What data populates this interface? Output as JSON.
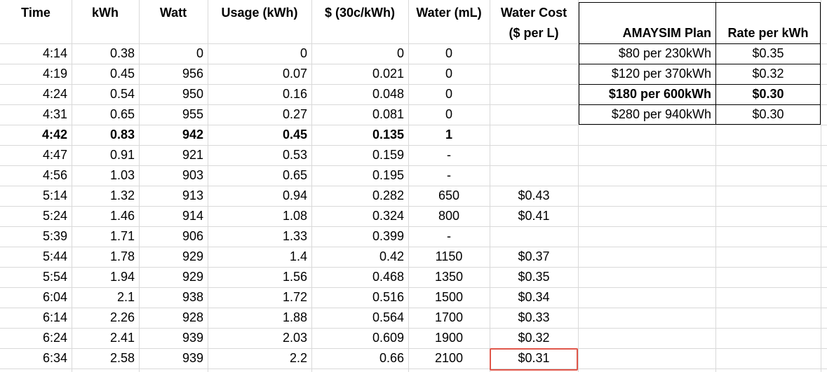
{
  "headers": {
    "time": "Time",
    "kwh": "kWh",
    "watt": "Watt",
    "usage": "Usage (kWh)",
    "cost": "$ (30c/kWh)",
    "water": "Water (mL)",
    "water_cost_line1": "Water Cost",
    "water_cost_line2": "($ per L)"
  },
  "rows": [
    {
      "time": "4:14",
      "kwh": "0.38",
      "watt": "0",
      "usage": "0",
      "cost": "0",
      "water": "0",
      "water_cost": "",
      "bold": false
    },
    {
      "time": "4:19",
      "kwh": "0.45",
      "watt": "956",
      "usage": "0.07",
      "cost": "0.021",
      "water": "0",
      "water_cost": "",
      "bold": false
    },
    {
      "time": "4:24",
      "kwh": "0.54",
      "watt": "950",
      "usage": "0.16",
      "cost": "0.048",
      "water": "0",
      "water_cost": "",
      "bold": false
    },
    {
      "time": "4:31",
      "kwh": "0.65",
      "watt": "955",
      "usage": "0.27",
      "cost": "0.081",
      "water": "0",
      "water_cost": "",
      "bold": false
    },
    {
      "time": "4:42",
      "kwh": "0.83",
      "watt": "942",
      "usage": "0.45",
      "cost": "0.135",
      "water": "1",
      "water_cost": "",
      "bold": true
    },
    {
      "time": "4:47",
      "kwh": "0.91",
      "watt": "921",
      "usage": "0.53",
      "cost": "0.159",
      "water": "-",
      "water_cost": "",
      "bold": false
    },
    {
      "time": "4:56",
      "kwh": "1.03",
      "watt": "903",
      "usage": "0.65",
      "cost": "0.195",
      "water": "-",
      "water_cost": "",
      "bold": false
    },
    {
      "time": "5:14",
      "kwh": "1.32",
      "watt": "913",
      "usage": "0.94",
      "cost": "0.282",
      "water": "650",
      "water_cost": "$0.43",
      "bold": false
    },
    {
      "time": "5:24",
      "kwh": "1.46",
      "watt": "914",
      "usage": "1.08",
      "cost": "0.324",
      "water": "800",
      "water_cost": "$0.41",
      "bold": false
    },
    {
      "time": "5:39",
      "kwh": "1.71",
      "watt": "906",
      "usage": "1.33",
      "cost": "0.399",
      "water": "-",
      "water_cost": "",
      "bold": false
    },
    {
      "time": "5:44",
      "kwh": "1.78",
      "watt": "929",
      "usage": "1.4",
      "cost": "0.42",
      "water": "1150",
      "water_cost": "$0.37",
      "bold": false
    },
    {
      "time": "5:54",
      "kwh": "1.94",
      "watt": "929",
      "usage": "1.56",
      "cost": "0.468",
      "water": "1350",
      "water_cost": "$0.35",
      "bold": false
    },
    {
      "time": "6:04",
      "kwh": "2.1",
      "watt": "938",
      "usage": "1.72",
      "cost": "0.516",
      "water": "1500",
      "water_cost": "$0.34",
      "bold": false
    },
    {
      "time": "6:14",
      "kwh": "2.26",
      "watt": "928",
      "usage": "1.88",
      "cost": "0.564",
      "water": "1700",
      "water_cost": "$0.33",
      "bold": false
    },
    {
      "time": "6:24",
      "kwh": "2.41",
      "watt": "939",
      "usage": "2.03",
      "cost": "0.609",
      "water": "1900",
      "water_cost": "$0.32",
      "bold": false
    },
    {
      "time": "6:34",
      "kwh": "2.58",
      "watt": "939",
      "usage": "2.2",
      "cost": "0.66",
      "water": "2100",
      "water_cost": "$0.31",
      "bold": false
    }
  ],
  "plans": {
    "header_plan": "AMAYSIM Plan",
    "header_rate": "Rate per kWh",
    "rows": [
      {
        "plan": "$80 per 230kWh",
        "rate": "$0.35",
        "bold": false
      },
      {
        "plan": "$120 per 370kWh",
        "rate": "$0.32",
        "bold": false
      },
      {
        "plan": "$180 per 600kWh",
        "rate": "$0.30",
        "bold": true
      },
      {
        "plan": "$280 per 940kWh",
        "rate": "$0.30",
        "bold": false
      }
    ]
  },
  "highlight_color": "#e0574b"
}
